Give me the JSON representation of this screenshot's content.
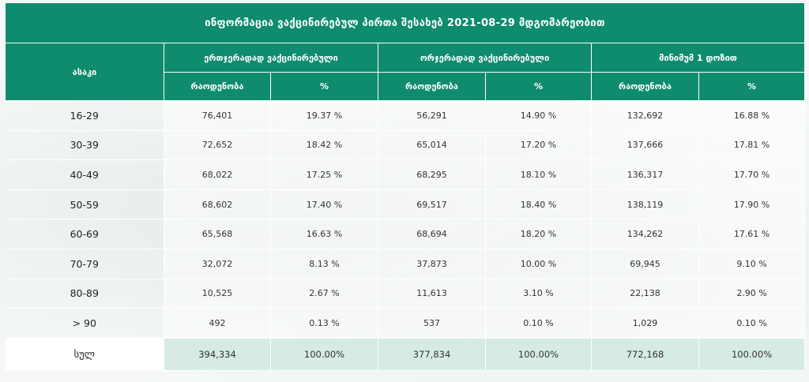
{
  "title": "ინფორმაცია ვაქცინირებულ პირთა შესახებ 2021-08-29 მდგომარეობით",
  "colors": {
    "header_bg": "#0e8c6d",
    "total_row_bg": "#d7ebe5"
  },
  "headers": {
    "age": "ასაკი",
    "groups": [
      "ერთჯერადად ვაქცინირებული",
      "ორჯერადად ვაქცინირებული",
      "მინიმუმ 1 დოზით"
    ],
    "count": "რაოდენობა",
    "percent": "%"
  },
  "rows": [
    {
      "age": "16-29",
      "c1": "76,401",
      "p1": "19.37 %",
      "c2": "56,291",
      "p2": "14.90 %",
      "c3": "132,692",
      "p3": "16.88 %"
    },
    {
      "age": "30-39",
      "c1": "72,652",
      "p1": "18.42 %",
      "c2": "65,014",
      "p2": "17.20 %",
      "c3": "137,666",
      "p3": "17.81 %"
    },
    {
      "age": "40-49",
      "c1": "68,022",
      "p1": "17.25 %",
      "c2": "68,295",
      "p2": "18.10 %",
      "c3": "136,317",
      "p3": "17.70 %"
    },
    {
      "age": "50-59",
      "c1": "68,602",
      "p1": "17.40 %",
      "c2": "69,517",
      "p2": "18.40 %",
      "c3": "138,119",
      "p3": "17.90 %"
    },
    {
      "age": "60-69",
      "c1": "65,568",
      "p1": "16.63 %",
      "c2": "68,694",
      "p2": "18.20 %",
      "c3": "134,262",
      "p3": "17.61 %"
    },
    {
      "age": "70-79",
      "c1": "32,072",
      "p1": "8.13 %",
      "c2": "37,873",
      "p2": "10.00 %",
      "c3": "69,945",
      "p3": "9.10 %"
    },
    {
      "age": "80-89",
      "c1": "10,525",
      "p1": "2.67 %",
      "c2": "11,613",
      "p2": "3.10 %",
      "c3": "22,138",
      "p3": "2.90 %"
    },
    {
      "age": "> 90",
      "c1": "492",
      "p1": "0.13 %",
      "c2": "537",
      "p2": "0.10 %",
      "c3": "1,029",
      "p3": "0.10 %"
    }
  ],
  "total": {
    "age": "სულ",
    "c1": "394,334",
    "p1": "100.00%",
    "c2": "377,834",
    "p2": "100.00%",
    "c3": "772,168",
    "p3": "100.00%"
  }
}
